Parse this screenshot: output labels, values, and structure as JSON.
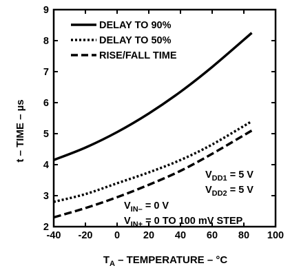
{
  "chart_data": {
    "type": "line",
    "xlabel_main": "T",
    "xlabel_sub": "A",
    "xlabel_rest": " – TEMPERATURE – °C",
    "ylabel": "t – TIME – µs",
    "xlim": [
      -40,
      100
    ],
    "ylim": [
      2,
      9
    ],
    "xticks": [
      -40,
      -20,
      0,
      20,
      40,
      60,
      80,
      100
    ],
    "yticks": [
      2,
      3,
      4,
      5,
      6,
      7,
      8,
      9
    ],
    "grid": false,
    "legend_position": "top-left",
    "series": [
      {
        "name": "DELAY TO 90%",
        "style": "solid",
        "points": [
          [
            -40,
            4.15
          ],
          [
            -20,
            4.55
          ],
          [
            0,
            5.05
          ],
          [
            20,
            5.65
          ],
          [
            40,
            6.35
          ],
          [
            60,
            7.15
          ],
          [
            85,
            8.25
          ]
        ]
      },
      {
        "name": "DELAY TO 50%",
        "style": "dotted",
        "points": [
          [
            -40,
            2.8
          ],
          [
            -20,
            3.05
          ],
          [
            0,
            3.4
          ],
          [
            20,
            3.75
          ],
          [
            40,
            4.15
          ],
          [
            60,
            4.65
          ],
          [
            85,
            5.4
          ]
        ]
      },
      {
        "name": "RISE/FALL TIME",
        "style": "dashed",
        "points": [
          [
            -40,
            2.3
          ],
          [
            -20,
            2.6
          ],
          [
            0,
            2.95
          ],
          [
            20,
            3.35
          ],
          [
            40,
            3.8
          ],
          [
            60,
            4.35
          ],
          [
            85,
            5.1
          ]
        ]
      }
    ],
    "annotations": {
      "vdd1": {
        "main": "V",
        "sub": "DD1",
        "rest": " = 5 V"
      },
      "vdd2": {
        "main": "V",
        "sub": "DD2",
        "rest": " = 5 V"
      },
      "vin_minus": {
        "main": "V",
        "sub": "IN–",
        "rest": " = 0 V"
      },
      "vin_plus": {
        "main": "V",
        "sub": "IN+",
        "rest": " = 0 TO 100 mV STEP"
      }
    }
  }
}
